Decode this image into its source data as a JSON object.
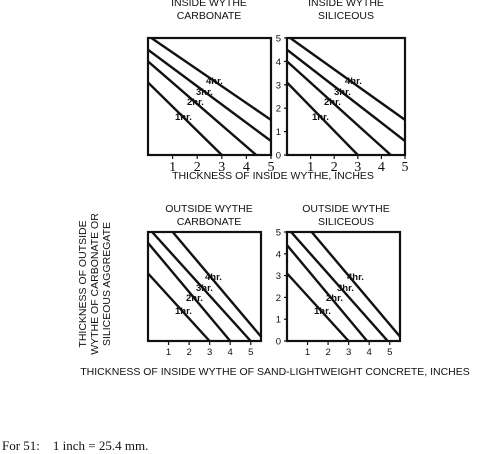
{
  "chart_data": [
    {
      "type": "line",
      "title": "INSIDE WYTHE\nCARBONATE",
      "xlabel": "",
      "ylabel": "",
      "xlim": [
        0,
        5
      ],
      "ylim": [
        0,
        5
      ],
      "x_ticks": [
        "1",
        "2",
        "3",
        "4",
        "5"
      ],
      "y_ticks": [],
      "series": [
        {
          "name": "1hr.",
          "x": [
            0,
            3.0
          ],
          "y": [
            3.1,
            0
          ]
        },
        {
          "name": "2hr.",
          "x": [
            0,
            4.4
          ],
          "y": [
            4.0,
            0
          ]
        },
        {
          "name": "3hr.",
          "x": [
            0,
            5.0
          ],
          "y": [
            4.5,
            0.6
          ]
        },
        {
          "name": "4hr.",
          "x": [
            0,
            5.0
          ],
          "y": [
            5.1,
            1.5
          ]
        }
      ]
    },
    {
      "type": "line",
      "title": "INSIDE WYTHE\nSILICEOUS",
      "xlabel": "",
      "ylabel": "",
      "xlim": [
        0,
        5
      ],
      "ylim": [
        0,
        5
      ],
      "x_ticks": [
        "1",
        "2",
        "3",
        "4",
        "5"
      ],
      "y_ticks": [
        "0",
        "1",
        "2",
        "3",
        "4",
        "5"
      ],
      "series": [
        {
          "name": "1hr.",
          "x": [
            0,
            3.0
          ],
          "y": [
            3.1,
            0
          ]
        },
        {
          "name": "2hr.",
          "x": [
            0,
            4.4
          ],
          "y": [
            4.0,
            0
          ]
        },
        {
          "name": "3hr.",
          "x": [
            0,
            5.0
          ],
          "y": [
            4.5,
            0.6
          ]
        },
        {
          "name": "4hr.",
          "x": [
            0,
            5.0
          ],
          "y": [
            5.1,
            1.5
          ]
        }
      ]
    },
    {
      "type": "line",
      "title": "OUTSIDE WYTHE\nCARBONATE",
      "xlabel": "",
      "ylabel": "",
      "xlim": [
        0,
        5.5
      ],
      "ylim": [
        0,
        5
      ],
      "x_ticks": [
        "1",
        "2",
        "3",
        "4",
        "5"
      ],
      "y_ticks": [],
      "series": [
        {
          "name": "1hr.",
          "x": [
            0,
            3.0
          ],
          "y": [
            3.1,
            0
          ]
        },
        {
          "name": "2hr.",
          "x": [
            0,
            4.0
          ],
          "y": [
            4.5,
            0
          ]
        },
        {
          "name": "3hr.",
          "x": [
            0.2,
            5.0
          ],
          "y": [
            5.0,
            0
          ]
        },
        {
          "name": "4hr.",
          "x": [
            1.2,
            5.5
          ],
          "y": [
            5.0,
            0.2
          ]
        }
      ]
    },
    {
      "type": "line",
      "title": "OUTSIDE WYTHE\nSILICEOUS",
      "xlabel": "",
      "ylabel": "",
      "xlim": [
        0,
        5.5
      ],
      "ylim": [
        0,
        5
      ],
      "x_ticks": [
        "1",
        "2",
        "3",
        "4",
        "5"
      ],
      "y_ticks": [
        "0",
        "1",
        "2",
        "3",
        "4",
        "5"
      ],
      "series": [
        {
          "name": "1hr.",
          "x": [
            0,
            3.0
          ],
          "y": [
            3.1,
            0
          ]
        },
        {
          "name": "2hr.",
          "x": [
            0,
            3.9
          ],
          "y": [
            4.4,
            0
          ]
        },
        {
          "name": "3hr.",
          "x": [
            0.2,
            4.9
          ],
          "y": [
            5.0,
            0
          ]
        },
        {
          "name": "4hr.",
          "x": [
            1.2,
            5.5
          ],
          "y": [
            5.0,
            0.2
          ]
        }
      ]
    }
  ],
  "labels": {
    "top_xlabel": "THICKNESS OF INSIDE WYTHE, INCHES",
    "shared_ylabel_lines": [
      "THICKNESS OF OUTSIDE",
      "WYTHE OF CARBONATE OR",
      "SILICEOUS AGGREGATE"
    ],
    "bottom_xlabel": "THICKNESS OF INSIDE WYTHE OF SAND-LIGHTWEIGHT CONCRETE, INCHES",
    "footnote": "For 51:    1 inch = 25.4 mm."
  }
}
